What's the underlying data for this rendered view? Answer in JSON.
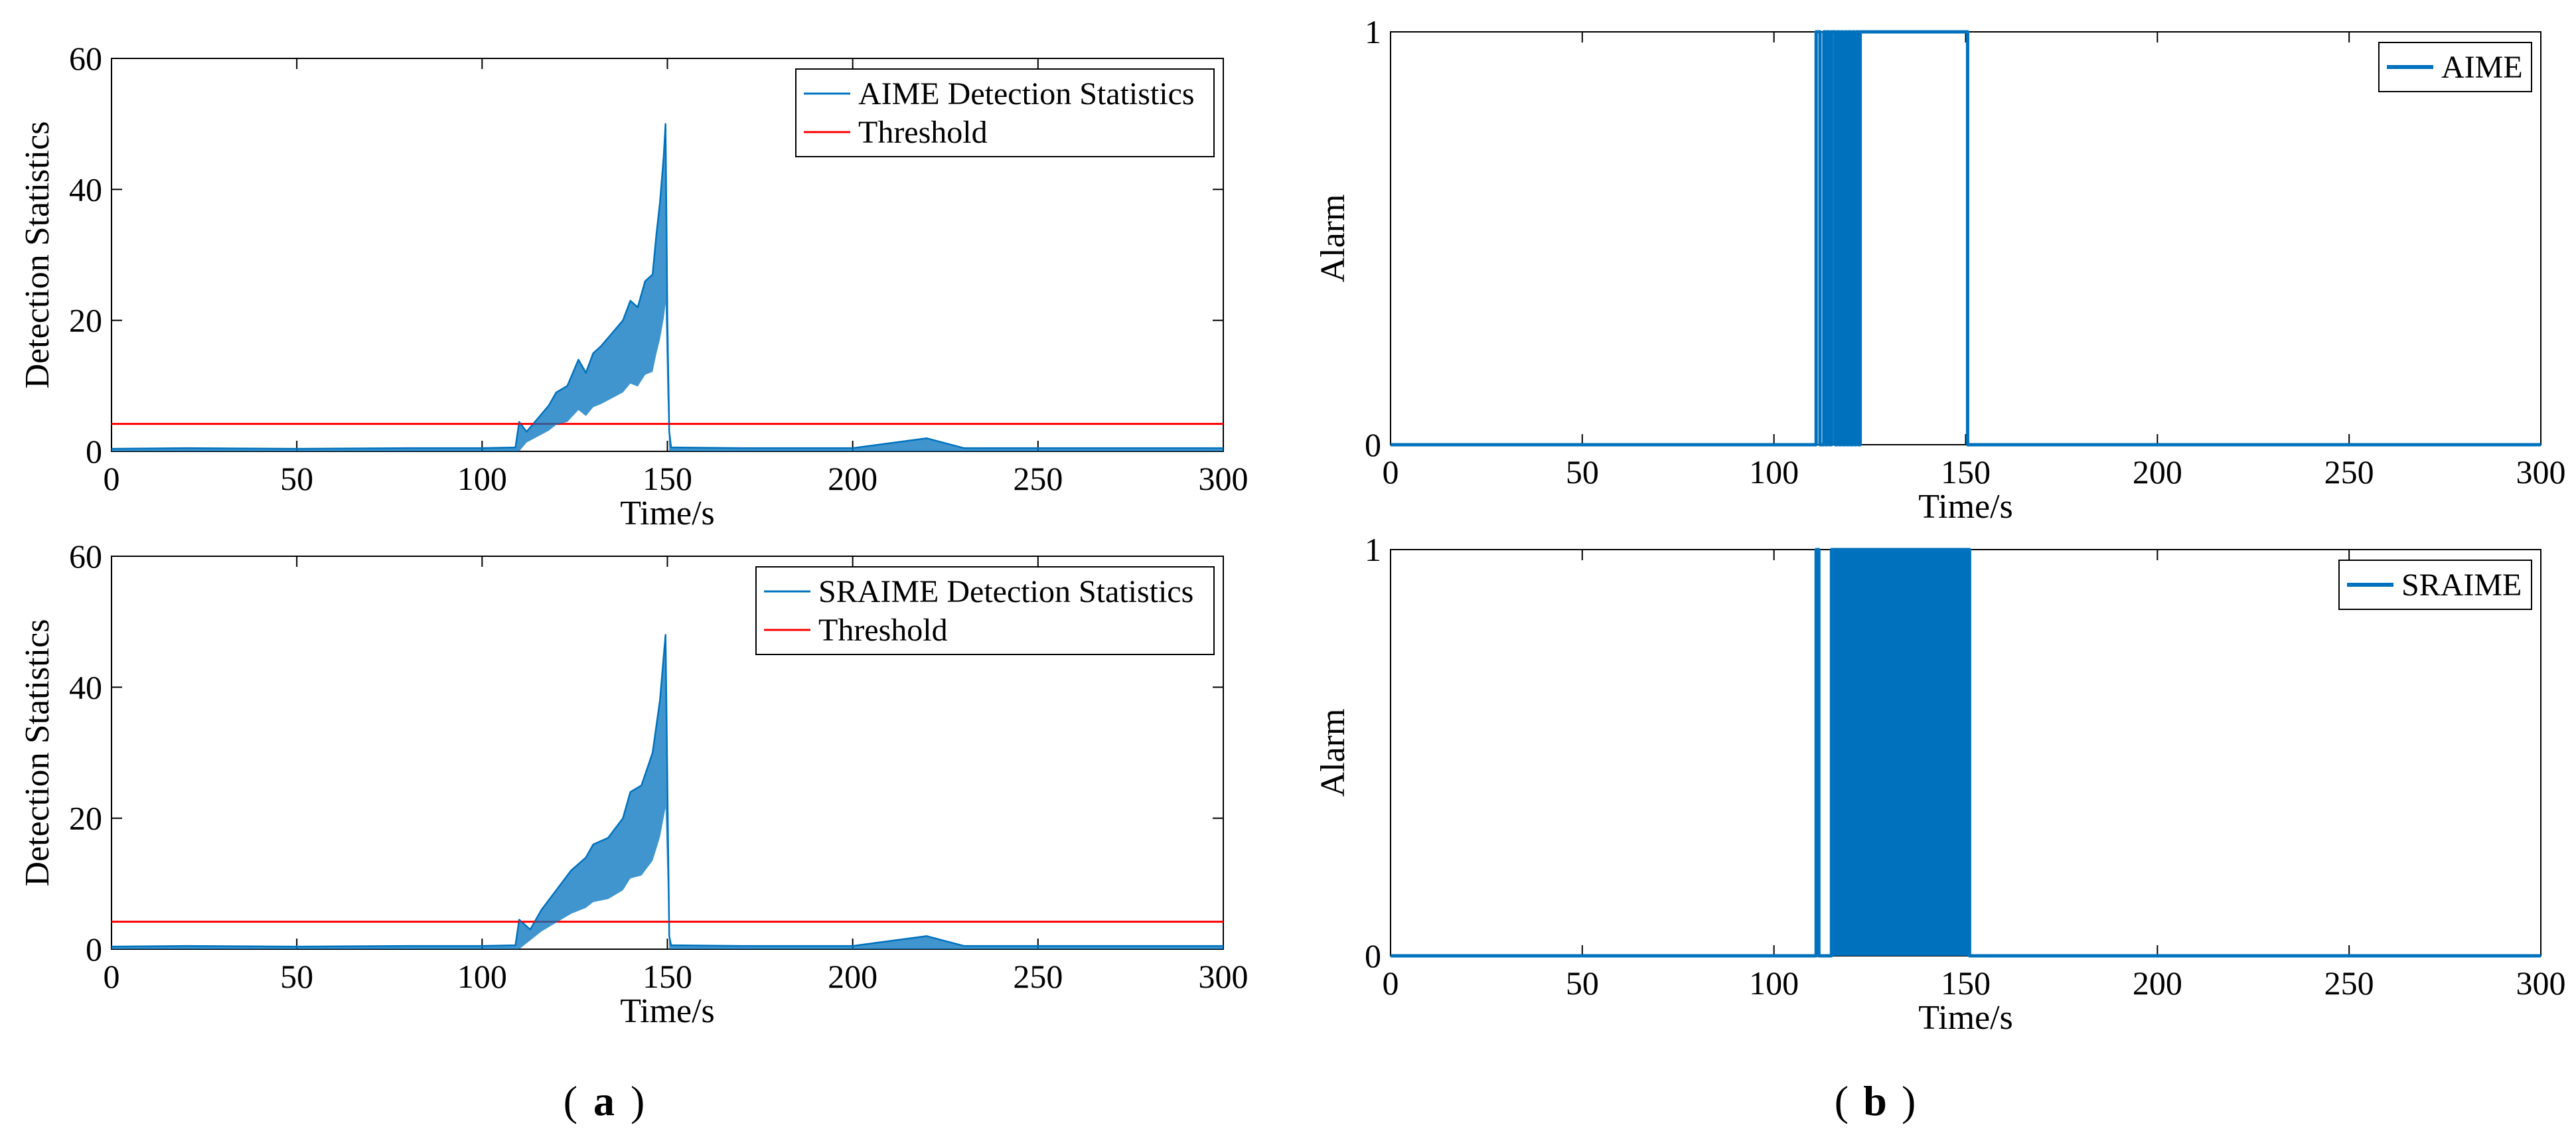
{
  "colors": {
    "series": "#0072BD",
    "threshold": "#FF0000",
    "axis": "#000000",
    "background": "#FFFFFF"
  },
  "panel_labels": {
    "a": "a",
    "b": "b"
  },
  "chart_data": [
    {
      "id": "a-top",
      "type": "line",
      "xlabel": "Time/s",
      "ylabel": "Detection Statistics",
      "xlim": [
        0,
        300
      ],
      "ylim": [
        0,
        60
      ],
      "xticks": [
        "0",
        "50",
        "100",
        "150",
        "200",
        "250",
        "300"
      ],
      "yticks": [
        "0",
        "20",
        "40",
        "60"
      ],
      "legend": [
        "AIME Detection Statistics",
        "Threshold"
      ],
      "legend_position": "top-right",
      "threshold": 4.2,
      "series": [
        {
          "name": "AIME Detection Statistics",
          "values": [
            [
              0,
              0.4
            ],
            [
              20,
              0.5
            ],
            [
              50,
              0.4
            ],
            [
              80,
              0.5
            ],
            [
              100,
              0.5
            ],
            [
              109,
              0.6
            ],
            [
              110,
              4.5
            ],
            [
              112,
              3
            ],
            [
              115,
              5
            ],
            [
              118,
              7
            ],
            [
              120,
              9
            ],
            [
              123,
              10
            ],
            [
              126,
              14
            ],
            [
              128,
              12
            ],
            [
              130,
              15
            ],
            [
              132,
              16
            ],
            [
              135,
              18
            ],
            [
              138,
              20
            ],
            [
              140,
              23
            ],
            [
              142,
              22
            ],
            [
              144,
              26
            ],
            [
              146,
              27
            ],
            [
              147,
              33
            ],
            [
              148,
              38
            ],
            [
              149,
              45
            ],
            [
              149.5,
              50
            ],
            [
              150,
              20
            ],
            [
              150.5,
              3
            ],
            [
              151,
              0.6
            ],
            [
              170,
              0.5
            ],
            [
              200,
              0.5
            ],
            [
              220,
              2.0
            ],
            [
              230,
              0.5
            ],
            [
              260,
              0.5
            ],
            [
              300,
              0.5
            ]
          ]
        },
        {
          "name": "Threshold",
          "values": [
            [
              0,
              4.2
            ],
            [
              300,
              4.2
            ]
          ]
        }
      ]
    },
    {
      "id": "a-bottom",
      "type": "line",
      "xlabel": "Time/s",
      "ylabel": "Detection Statistics",
      "xlim": [
        0,
        300
      ],
      "ylim": [
        0,
        60
      ],
      "xticks": [
        "0",
        "50",
        "100",
        "150",
        "200",
        "250",
        "300"
      ],
      "yticks": [
        "0",
        "20",
        "40",
        "60"
      ],
      "legend": [
        "SRAIME Detection Statistics",
        "Threshold"
      ],
      "legend_position": "top-right",
      "threshold": 4.2,
      "series": [
        {
          "name": "SRAIME Detection Statistics",
          "values": [
            [
              0,
              0.4
            ],
            [
              20,
              0.5
            ],
            [
              50,
              0.4
            ],
            [
              80,
              0.5
            ],
            [
              100,
              0.5
            ],
            [
              109,
              0.6
            ],
            [
              110,
              4.5
            ],
            [
              113,
              3
            ],
            [
              116,
              6
            ],
            [
              120,
              9
            ],
            [
              124,
              12
            ],
            [
              128,
              14
            ],
            [
              130,
              16
            ],
            [
              134,
              17
            ],
            [
              138,
              20
            ],
            [
              140,
              24
            ],
            [
              143,
              25
            ],
            [
              146,
              30
            ],
            [
              148,
              38
            ],
            [
              149.5,
              48
            ],
            [
              150,
              25
            ],
            [
              150.5,
              2
            ],
            [
              151,
              0.6
            ],
            [
              170,
              0.5
            ],
            [
              200,
              0.5
            ],
            [
              220,
              2.0
            ],
            [
              230,
              0.5
            ],
            [
              260,
              0.5
            ],
            [
              300,
              0.5
            ]
          ]
        },
        {
          "name": "Threshold",
          "values": [
            [
              0,
              4.2
            ],
            [
              300,
              4.2
            ]
          ]
        }
      ]
    },
    {
      "id": "b-top",
      "type": "line",
      "xlabel": "Time/s",
      "ylabel": "Alarm",
      "xlim": [
        0,
        300
      ],
      "ylim": [
        0,
        1
      ],
      "xticks": [
        "0",
        "50",
        "100",
        "150",
        "200",
        "250",
        "300"
      ],
      "yticks": [
        "0",
        "1"
      ],
      "legend": [
        "AIME"
      ],
      "legend_position": "top-right",
      "series": [
        {
          "name": "AIME",
          "values": [
            [
              0,
              0
            ],
            [
              111,
              0
            ],
            [
              111,
              1
            ],
            [
              112,
              1
            ],
            [
              112,
              0
            ],
            [
              113,
              0
            ],
            [
              113,
              1
            ],
            [
              113.5,
              1
            ],
            [
              113.5,
              0
            ],
            [
              114,
              0
            ],
            [
              114,
              1
            ],
            [
              114.5,
              1
            ],
            [
              114.5,
              0
            ],
            [
              115,
              0
            ],
            [
              115,
              1
            ],
            [
              116,
              1
            ],
            [
              116,
              0
            ],
            [
              116.5,
              0
            ],
            [
              116.5,
              1
            ],
            [
              117,
              1
            ],
            [
              117,
              0
            ],
            [
              117.5,
              0
            ],
            [
              117.5,
              1
            ],
            [
              118,
              1
            ],
            [
              118,
              0
            ],
            [
              118.5,
              0
            ],
            [
              118.5,
              1
            ],
            [
              119,
              1
            ],
            [
              119,
              0
            ],
            [
              119.5,
              0
            ],
            [
              119.5,
              1
            ],
            [
              120,
              1
            ],
            [
              120,
              0
            ],
            [
              120.5,
              0
            ],
            [
              120.5,
              1
            ],
            [
              121,
              1
            ],
            [
              121,
              0
            ],
            [
              121.5,
              0
            ],
            [
              121.5,
              1
            ],
            [
              122,
              1
            ],
            [
              122,
              0
            ],
            [
              122.5,
              0
            ],
            [
              122.5,
              1
            ],
            [
              150.5,
              1
            ],
            [
              150.5,
              0
            ],
            [
              300,
              0
            ]
          ]
        }
      ]
    },
    {
      "id": "b-bottom",
      "type": "line",
      "xlabel": "Time/s",
      "ylabel": "Alarm",
      "xlim": [
        0,
        300
      ],
      "ylim": [
        0,
        1
      ],
      "xticks": [
        "0",
        "50",
        "100",
        "150",
        "200",
        "250",
        "300"
      ],
      "yticks": [
        "0",
        "1"
      ],
      "legend": [
        "SRAIME"
      ],
      "legend_position": "top-right",
      "series": [
        {
          "name": "SRAIME",
          "values": [
            [
              0,
              0
            ],
            [
              111,
              0
            ],
            [
              111,
              1
            ],
            [
              111.7,
              1
            ],
            [
              111.7,
              0
            ],
            [
              115,
              0
            ],
            [
              115,
              1
            ],
            [
              151,
              1
            ],
            [
              151,
              0
            ],
            [
              300,
              0
            ]
          ]
        }
      ]
    }
  ]
}
